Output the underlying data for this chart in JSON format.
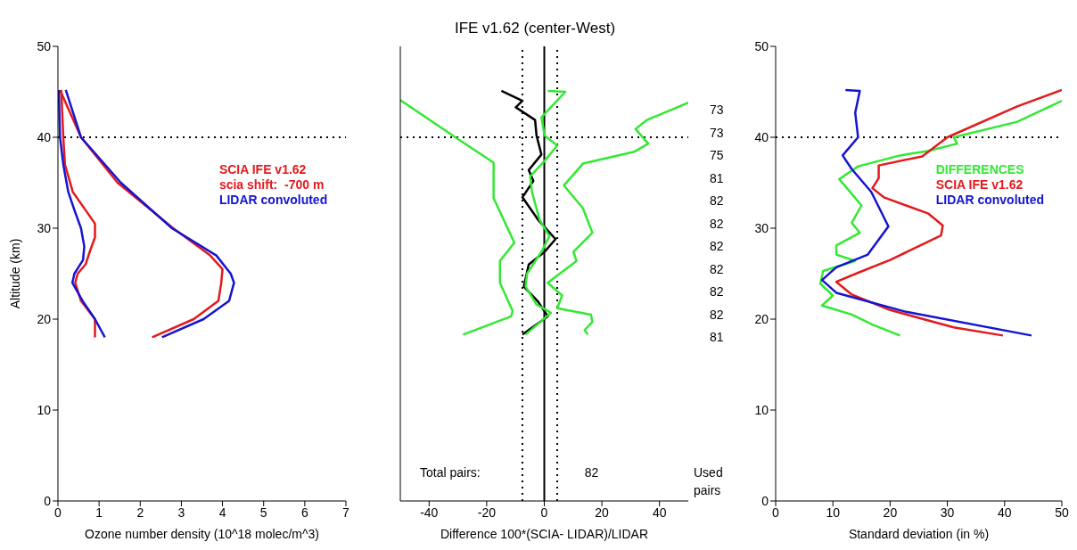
{
  "chart_data": [
    {
      "type": "line",
      "xlabel": "Ozone number density (10^18 molec/m^3)",
      "ylabel": "Altitude (km)",
      "xlim": [
        0,
        7
      ],
      "xticks": [
        0,
        1,
        2,
        3,
        4,
        5,
        6,
        7
      ],
      "ylim": [
        0,
        50
      ],
      "yticks": [
        0,
        10,
        20,
        30,
        40,
        50
      ],
      "grid": false,
      "legend": "right",
      "line_style": "solid",
      "marker": "none",
      "annotations": [
        "scia shift:  -700 m"
      ],
      "ref_lines": [
        {
          "axis": "y",
          "value": 40,
          "line_style": "dotted",
          "color": "#000000"
        }
      ],
      "series": [
        {
          "name": "SCIA IFE v1.62",
          "color": "#e31a1c",
          "x": [
            0.05,
            0.56,
            1.45,
            2.8,
            3.7,
            4.0,
            3.97,
            3.9,
            3.3,
            2.29
          ],
          "values": [
            45.2,
            40,
            35,
            30,
            27,
            25.5,
            24,
            22,
            20,
            18
          ]
        },
        {
          "name": "LIDAR convoluted",
          "color": "#1414d2",
          "x": [
            0.19,
            0.56,
            1.53,
            2.77,
            3.85,
            4.2,
            4.28,
            4.16,
            3.54,
            2.53
          ],
          "values": [
            45.2,
            40,
            35,
            30,
            27,
            25,
            24,
            22,
            20,
            18
          ]
        },
        {
          "color": "#e31a1c",
          "x": [
            0.08,
            0.13,
            0.17,
            0.36,
            0.67,
            0.9,
            0.9,
            0.78,
            0.67,
            0.48,
            0.42,
            0.56,
            0.9,
            0.9
          ],
          "values": [
            45.2,
            40,
            37,
            34,
            32,
            30.5,
            29,
            27.5,
            26,
            25,
            24,
            22,
            20,
            18
          ]
        },
        {
          "color": "#1414d2",
          "x": [
            0.02,
            0.05,
            0.13,
            0.25,
            0.4,
            0.56,
            0.64,
            0.61,
            0.4,
            0.35,
            0.6,
            0.9,
            1.14
          ],
          "values": [
            45.2,
            40,
            37,
            34,
            32,
            30,
            28,
            26.5,
            25,
            24,
            22,
            20,
            18
          ]
        }
      ]
    },
    {
      "type": "line",
      "title": "IFE v1.62 (center-West)",
      "xlabel": "Difference 100*(SCIA- LIDAR)/LIDAR",
      "xlim": [
        -50,
        50
      ],
      "xticks": [
        -40,
        -20,
        0,
        20,
        40
      ],
      "ylim": [
        0,
        50
      ],
      "yticks": [
        0,
        10,
        20,
        30,
        40,
        50
      ],
      "tick_labels": "x",
      "grid": false,
      "legend": false,
      "line_style": "solid",
      "marker": "none",
      "annotations": [
        "Total pairs:",
        "82",
        "Used pairs",
        "73",
        "73",
        "75",
        "81",
        "82",
        "82",
        "82",
        "82",
        "82",
        "82",
        "81"
      ],
      "ref_lines": [
        {
          "axis": "y",
          "value": 40,
          "line_style": "dotted",
          "color": "#000000"
        },
        {
          "axis": "x",
          "value": -7.6,
          "line_style": "dotted",
          "color": "#000000"
        },
        {
          "axis": "x",
          "value": 0,
          "line_style": "solid",
          "color": "#000000"
        },
        {
          "axis": "x",
          "value": 4.5,
          "line_style": "dotted",
          "color": "#000000"
        }
      ],
      "series": [
        {
          "color": "#33e833",
          "x": [
            -50,
            -30.9,
            -17.6,
            -17.6,
            -10.4,
            -15.4,
            -15.4,
            -11,
            -11.5,
            -28.2
          ],
          "values": [
            44.1,
            40,
            37.2,
            33.3,
            28.4,
            26.4,
            24,
            20.9,
            20.3,
            18.3
          ]
        },
        {
          "color": "#33e833",
          "x": [
            50,
            35.6,
            31.7,
            36.1,
            31.2,
            13.4,
            6.8,
            13.4,
            16.7,
            10.1,
            11.2,
            1.2,
            6.2,
            4.5,
            16.2,
            16.7,
            14,
            15.1
          ],
          "values": [
            43.8,
            41.9,
            40.9,
            39.3,
            38.4,
            37.1,
            34.7,
            32.2,
            29.5,
            27.4,
            26.4,
            24,
            22.6,
            21.2,
            20.5,
            19.7,
            18.8,
            18.3
          ]
        },
        {
          "color": "#000000",
          "x": [
            -14.9,
            -7.6,
            -9.9,
            -3.2,
            -2.7,
            -1,
            -5.4,
            -3.8,
            -7.6,
            -2.1,
            3.9,
            0.1,
            -5.4,
            -7.1,
            -2.1,
            1.2,
            -7.6
          ],
          "values": [
            45.1,
            44,
            43.3,
            41.9,
            40.2,
            38.1,
            36.4,
            35.2,
            33.4,
            30.9,
            28.8,
            27.4,
            26,
            23.6,
            21.9,
            20.3,
            18.3
          ]
        },
        {
          "color": "#33e833",
          "x": [
            1.2,
            7.3,
            -1,
            0.1,
            4.5,
            0.1,
            -4.9,
            -4.3,
            -1.6,
            1.8,
            -1,
            -6,
            -6.5,
            -2.7,
            2.3,
            -6.5
          ],
          "values": [
            45.1,
            45,
            42.2,
            40.2,
            39.1,
            37.4,
            35.7,
            34,
            30.9,
            29.1,
            27.4,
            25,
            23.6,
            21.6,
            20.7,
            18.3
          ]
        }
      ]
    },
    {
      "type": "line",
      "xlabel": "Standard deviation (in %)",
      "xlim": [
        0,
        50
      ],
      "xticks": [
        0,
        10,
        20,
        30,
        40,
        50
      ],
      "ylim": [
        0,
        50
      ],
      "yticks": [
        0,
        10,
        20,
        30,
        40,
        50
      ],
      "grid": false,
      "legend": "right",
      "line_style": "solid",
      "marker": "none",
      "ref_lines": [
        {
          "axis": "y",
          "value": 40,
          "line_style": "dotted",
          "color": "#000000"
        }
      ],
      "series": [
        {
          "name": "DIFFERENCES",
          "color": "#33e833",
          "x": [
            50,
            42.2,
            31.1,
            31.7,
            26.7,
            21.7,
            14.4,
            11.1,
            15,
            13.3,
            14.7,
            10.6,
            10.6,
            13.9,
            8.3,
            7.8,
            10,
            8.1,
            13.3,
            16.9,
            21.7
          ],
          "values": [
            44,
            41.7,
            40,
            39.3,
            38.5,
            38,
            36.8,
            35.4,
            32.5,
            30.6,
            29.5,
            28.1,
            27.1,
            26.4,
            25.3,
            23.9,
            22.6,
            21.5,
            20.5,
            19.4,
            18.2
          ]
        },
        {
          "name": "SCIA IFE v1.62",
          "color": "#e31a1c",
          "x": [
            50,
            42.2,
            30,
            25.6,
            18,
            18,
            16.9,
            18.9,
            26.7,
            29.2,
            28.9,
            20,
            14.4,
            10.6,
            13.3,
            20,
            31.1,
            39.7
          ],
          "values": [
            45.2,
            43.4,
            40,
            37.9,
            36.9,
            35.5,
            34.4,
            33.4,
            31.6,
            30.3,
            29.2,
            26.5,
            25.1,
            24.1,
            22.7,
            21,
            19.1,
            18.2
          ]
        },
        {
          "name": "LIDAR convoluted",
          "color": "#1414d2",
          "x": [
            12.2,
            14.7,
            13.9,
            14.4,
            11.7,
            13.3,
            16.7,
            19.7,
            16.1,
            10.6,
            8.1,
            10.6,
            22.8,
            44.7
          ],
          "values": [
            45.2,
            45.1,
            42.7,
            40,
            38,
            36.5,
            34,
            30.2,
            27.1,
            25.7,
            24.3,
            22.9,
            20.8,
            18.2
          ]
        }
      ]
    }
  ]
}
